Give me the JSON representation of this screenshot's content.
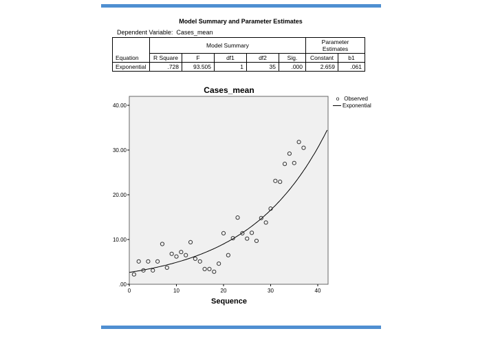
{
  "table": {
    "title": "Model Summary and Parameter Estimates",
    "dependent_label": "Dependent Variable:",
    "dependent_value": "Cases_mean",
    "group_headers": [
      "Model Summary",
      "Parameter Estimates"
    ],
    "columns": [
      "Equation",
      "R Square",
      "F",
      "df1",
      "df2",
      "Sig.",
      "Constant",
      "b1"
    ],
    "rows": [
      [
        "Exponential",
        ".728",
        "93.505",
        "1",
        "35",
        ".000",
        "2.659",
        ".061"
      ]
    ]
  },
  "legend": {
    "observed": "Observed",
    "fit": "Exponential"
  },
  "chart_data": {
    "type": "scatter",
    "title": "Cases_mean",
    "xlabel": "Sequence",
    "ylabel": "",
    "xlim": [
      0,
      42
    ],
    "ylim": [
      0,
      42
    ],
    "x_ticks": [
      "0",
      "10",
      "20",
      "30",
      "40"
    ],
    "y_ticks": [
      ".00",
      "10.00",
      "20.00",
      "30.00",
      "40.00"
    ],
    "legend_position": "right",
    "grid": false,
    "series": [
      {
        "name": "Observed",
        "x": [
          1,
          2,
          3,
          4,
          5,
          6,
          7,
          8,
          9,
          10,
          11,
          12,
          13,
          14,
          15,
          16,
          17,
          18,
          19,
          20,
          21,
          22,
          23,
          24,
          25,
          26,
          27,
          28,
          29,
          30,
          31,
          32,
          33,
          34,
          35,
          36,
          37
        ],
        "values": [
          2.2,
          5.1,
          3.1,
          5.1,
          3.1,
          5.1,
          9.0,
          3.7,
          6.8,
          6.2,
          7.2,
          6.5,
          9.4,
          5.7,
          5.1,
          3.4,
          3.4,
          2.8,
          4.6,
          11.4,
          6.5,
          10.3,
          14.9,
          11.4,
          10.2,
          11.5,
          9.7,
          14.8,
          13.8,
          16.9,
          23.1,
          22.9,
          26.9,
          29.2,
          27.1,
          31.8,
          30.5
        ]
      },
      {
        "name": "Exponential",
        "equation": "y = 2.659 * exp(0.061 * x)",
        "constant": 2.659,
        "b1": 0.061
      }
    ]
  }
}
